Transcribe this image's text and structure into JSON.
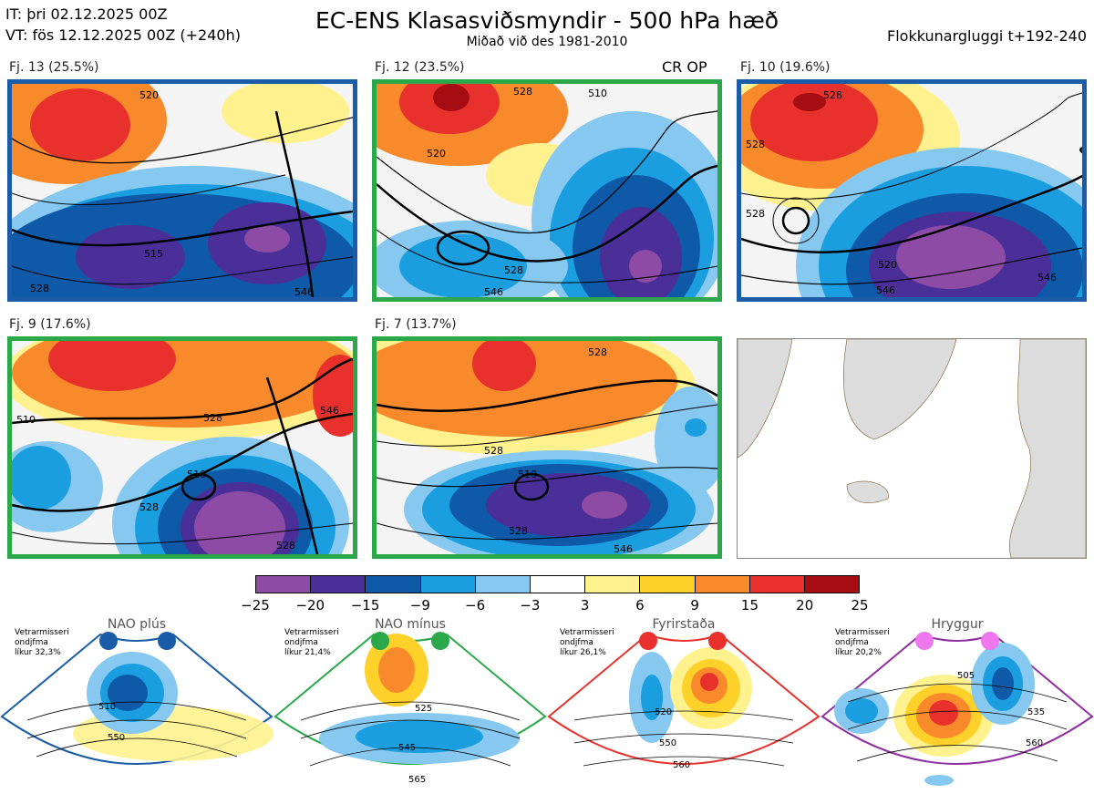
{
  "header": {
    "it": "IT: þri 02.12.2025 00Z",
    "vt": "VT: fös 12.12.2025 00Z  (+240h)",
    "title": "EC-ENS Klasasviðsmyndir - 500 hPa hæð",
    "subtitle": "Miðað við des 1981-2010",
    "window": "Flokkunargluggi t+192-240"
  },
  "op_label": "CR OP",
  "clusters": [
    {
      "label": "Fj. 13 (25.5%)",
      "frame_color": "#1a5ca8",
      "contours": [
        "520",
        "515",
        "528",
        "546"
      ]
    },
    {
      "label": "Fj. 12 (23.5%)",
      "frame_color": "#2aa84a",
      "contours": [
        "528",
        "510",
        "520",
        "528",
        "546"
      ]
    },
    {
      "label": "Fj. 10 (19.6%)",
      "frame_color": "#1a5ca8",
      "contours": [
        "528",
        "528",
        "528",
        "520",
        "546",
        "546"
      ]
    },
    {
      "label": "Fj. 9 (17.6%)",
      "frame_color": "#2aa84a",
      "contours": [
        "510",
        "528",
        "510",
        "528",
        "546",
        "528"
      ]
    },
    {
      "label": "Fj. 7 (13.7%)",
      "frame_color": "#2aa84a",
      "contours": [
        "528",
        "528",
        "510",
        "528",
        "546"
      ]
    }
  ],
  "colorbar": {
    "colors": [
      "#8e4ba5",
      "#4a2f98",
      "#0e5aa8",
      "#1a9ee0",
      "#86c8ef",
      "#ffffff",
      "#fff28e",
      "#fdd12a",
      "#f88a2c",
      "#e8312c",
      "#a50d13"
    ],
    "ticks": [
      "−25",
      "−20",
      "−15",
      "−9",
      "−6",
      "−3",
      "3",
      "6",
      "9",
      "15",
      "20",
      "25"
    ]
  },
  "regimes": [
    {
      "name": "NAO plús",
      "color": "#1a5ca8",
      "prob_lines": [
        "Vetrarmisseri",
        "ondjfma",
        "líkur 32,3%"
      ],
      "contours": [
        "510",
        "550"
      ]
    },
    {
      "name": "NAO mínus",
      "color": "#2aa84a",
      "prob_lines": [
        "Vetrarmisseri",
        "ondjfma",
        "líkur 21,4%"
      ],
      "contours": [
        "525",
        "545",
        "565"
      ]
    },
    {
      "name": "Fyrirstaða",
      "color": "#e8312c",
      "prob_lines": [
        "Vetrarmisseri",
        "ondjfma",
        "líkur 26,1%"
      ],
      "contours": [
        "520",
        "550",
        "560"
      ]
    },
    {
      "name": "Hryggur",
      "color": "#8e2fa0",
      "dot_color": "#ee77ee",
      "prob_lines": [
        "Vetrarmisseri",
        "ondjfma",
        "líkur 20,2%"
      ],
      "contours": [
        "505",
        "535",
        "560"
      ]
    }
  ]
}
